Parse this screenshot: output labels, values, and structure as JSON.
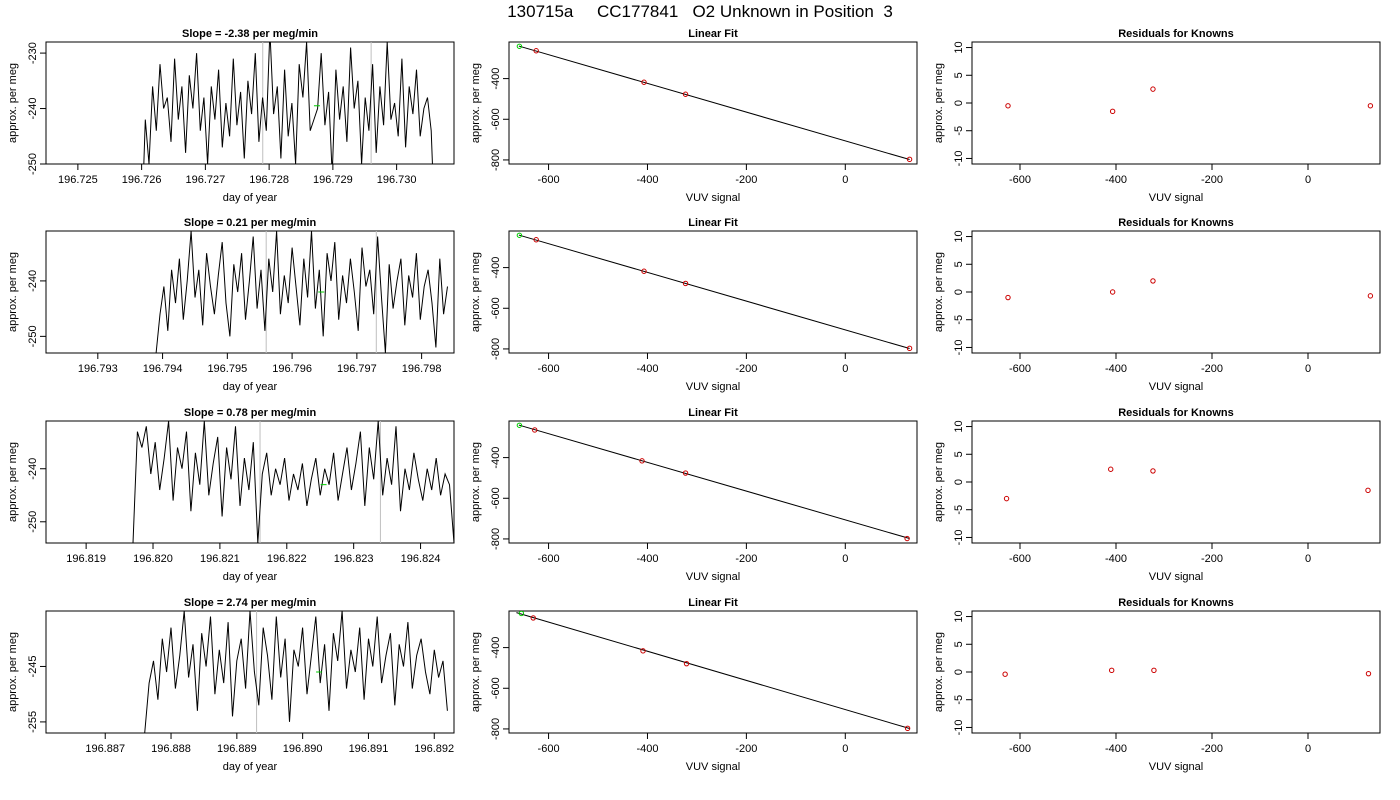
{
  "title": "130715a     CC177841   O2 Unknown in Position  3",
  "colors": {
    "axis": "#000000",
    "line": "#000000",
    "known": "#cc0000",
    "unknown": "#00cc00",
    "gridline": "#bfbfbf"
  },
  "chart_data": [
    {
      "type": "line",
      "title": "Slope =  -2.38  per meg/min",
      "xlabel": "day of year",
      "ylabel": "approx. per meg",
      "xlim": [
        196.7245,
        196.7309
      ],
      "ylim": [
        -250,
        -228
      ],
      "xticks": [
        "196.725",
        "196.726",
        "196.727",
        "196.728",
        "196.729",
        "196.730"
      ],
      "xtick_values": [
        196.725,
        196.726,
        196.727,
        196.728,
        196.729,
        196.73
      ],
      "yticks": [
        "-250",
        "-240",
        "-230"
      ],
      "ytick_values": [
        -250,
        -240,
        -230
      ],
      "vlines": [
        196.7279,
        196.7296
      ],
      "x_start": 196.726,
      "x_end": 196.7306,
      "values": [
        -262,
        -242,
        -250,
        -236,
        -244,
        -232,
        -240,
        -238,
        -246,
        -231,
        -242,
        -236,
        -248,
        -234,
        -240,
        -230,
        -244,
        -238,
        -250,
        -236,
        -242,
        -233,
        -247,
        -239,
        -245,
        -231,
        -243,
        -237,
        -249,
        -235,
        -241,
        -230,
        -246,
        -238,
        -244,
        -226,
        -241,
        -236,
        -249,
        -233,
        -245,
        -239,
        -250,
        -232,
        -238,
        -228,
        -244,
        -242,
        -240,
        -230,
        -243,
        -237,
        -252,
        -233,
        -242,
        -236,
        -246,
        -229,
        -240,
        -235,
        -250,
        -238,
        -244,
        -232,
        -248,
        -236,
        -243,
        -228,
        -242,
        -239,
        -245,
        -231,
        -247,
        -236,
        -241,
        -233,
        -245,
        -240,
        -238,
        -244,
        -262
      ],
      "unknown_point": [
        196.72875,
        -239.5
      ]
    },
    {
      "type": "line",
      "title": "Slope =  0.21  per meg/min",
      "xlabel": "day of year",
      "ylabel": "approx. per meg",
      "xlim": [
        196.7922,
        196.7985
      ],
      "ylim": [
        -253,
        -231
      ],
      "xticks": [
        "196.793",
        "196.794",
        "196.795",
        "196.796",
        "196.797",
        "196.798"
      ],
      "xtick_values": [
        196.793,
        196.794,
        196.795,
        196.796,
        196.797,
        196.798
      ],
      "yticks": [
        "-250",
        "-240"
      ],
      "ytick_values": [
        -250,
        -240
      ],
      "vlines": [
        196.7956,
        196.7973
      ],
      "x_start": 196.7939,
      "x_end": 196.7984,
      "values": [
        -253,
        -246,
        -241,
        -249,
        -238,
        -244,
        -236,
        -247,
        -240,
        -231,
        -243,
        -238,
        -248,
        -235,
        -241,
        -246,
        -239,
        -233,
        -244,
        -250,
        -237,
        -242,
        -235,
        -247,
        -240,
        -232,
        -245,
        -238,
        -249,
        -236,
        -242,
        -231,
        -246,
        -239,
        -244,
        -234,
        -241,
        -248,
        -236,
        -243,
        -231,
        -245,
        -238,
        -250,
        -235,
        -240,
        -233,
        -247,
        -239,
        -244,
        -236,
        -242,
        -249,
        -234,
        -241,
        -238,
        -246,
        -232,
        -243,
        -253,
        -237,
        -245,
        -240,
        -236,
        -248,
        -239,
        -243,
        -235,
        -247,
        -241,
        -238,
        -244,
        -252,
        -236,
        -246,
        -241
      ],
      "unknown_point": [
        196.79645,
        -242.0
      ]
    },
    {
      "type": "line",
      "title": "Slope =  0.78  per meg/min",
      "xlabel": "day of year",
      "ylabel": "approx. per meg",
      "xlim": [
        196.8184,
        196.8245
      ],
      "ylim": [
        -254,
        -231
      ],
      "xticks": [
        "196.819",
        "196.820",
        "196.821",
        "196.822",
        "196.823",
        "196.824"
      ],
      "xtick_values": [
        196.819,
        196.82,
        196.821,
        196.822,
        196.823,
        196.824
      ],
      "yticks": [
        "-250",
        "-240"
      ],
      "ytick_values": [
        -250,
        -240
      ],
      "vlines": [
        196.8216,
        196.8234
      ],
      "x_start": 196.8197,
      "x_end": 196.8245,
      "values": [
        -254,
        -233,
        -236,
        -232,
        -241,
        -235,
        -244,
        -238,
        -231,
        -246,
        -236,
        -240,
        -233,
        -248,
        -237,
        -243,
        -231,
        -245,
        -239,
        -234,
        -249,
        -236,
        -242,
        -232,
        -247,
        -238,
        -244,
        -235,
        -254,
        -241,
        -237,
        -245,
        -240,
        -243,
        -238,
        -246,
        -241,
        -244,
        -239,
        -247,
        -242,
        -238,
        -245,
        -240,
        -243,
        -237,
        -246,
        -241,
        -236,
        -244,
        -239,
        -233,
        -247,
        -236,
        -242,
        -231,
        -245,
        -238,
        -243,
        -232,
        -248,
        -240,
        -244,
        -237,
        -242,
        -246,
        -240,
        -244,
        -238,
        -245,
        -241,
        -243,
        -254
      ],
      "unknown_point": [
        196.82255,
        -243.0
      ]
    },
    {
      "type": "line",
      "title": "Slope =  2.74  per meg/min",
      "xlabel": "day of year",
      "ylabel": "approx. per meg",
      "xlim": [
        196.8861,
        196.8923
      ],
      "ylim": [
        -257,
        -235
      ],
      "xticks": [
        "196.887",
        "196.888",
        "196.889",
        "196.890",
        "196.891",
        "196.892"
      ],
      "xtick_values": [
        196.887,
        196.888,
        196.889,
        196.89,
        196.891,
        196.892
      ],
      "yticks": [
        "-255",
        "-245"
      ],
      "ytick_values": [
        -255,
        -245
      ],
      "vlines": [
        196.8893
      ],
      "x_start": 196.8876,
      "x_end": 196.8922,
      "values": [
        -257,
        -248,
        -244,
        -251,
        -240,
        -246,
        -238,
        -249,
        -243,
        -235,
        -247,
        -241,
        -253,
        -239,
        -245,
        -236,
        -250,
        -242,
        -248,
        -237,
        -254,
        -244,
        -240,
        -249,
        -235,
        -246,
        -252,
        -238,
        -243,
        -251,
        -236,
        -247,
        -240,
        -255,
        -242,
        -245,
        -238,
        -250,
        -243,
        -236,
        -248,
        -241,
        -253,
        -239,
        -244,
        -235,
        -249,
        -242,
        -246,
        -238,
        -251,
        -240,
        -245,
        -236,
        -248,
        -243,
        -239,
        -252,
        -241,
        -245,
        -237,
        -249,
        -243,
        -240,
        -246,
        -250,
        -242,
        -247,
        -244,
        -253
      ],
      "unknown_point": [
        196.89025,
        -246.0
      ]
    },
    {
      "type": "scatter",
      "title": "Linear Fit",
      "xlabel": "VUV signal",
      "ylabel": "approx. per meg",
      "xlim": [
        -680,
        145
      ],
      "ylim": [
        -820,
        -220
      ],
      "xticks": [
        "-600",
        "-400",
        "-200",
        "0"
      ],
      "xtick_values": [
        -600,
        -400,
        -200,
        0
      ],
      "yticks": [
        "-800",
        "-600",
        "-400"
      ],
      "ytick_values": [
        -800,
        -600,
        -400
      ],
      "fit_line": [
        [
          -660,
          -240
        ],
        [
          130,
          -798
        ]
      ],
      "knowns": [
        [
          -625,
          -263
        ],
        [
          -407,
          -418
        ],
        [
          -323,
          -477
        ],
        [
          130,
          -797
        ]
      ],
      "unknown": [
        -659,
        -241
      ]
    },
    {
      "type": "scatter",
      "title": "Linear Fit",
      "xlabel": "VUV signal",
      "ylabel": "approx. per meg",
      "xlim": [
        -680,
        145
      ],
      "ylim": [
        -820,
        -220
      ],
      "xticks": [
        "-600",
        "-400",
        "-200",
        "0"
      ],
      "xtick_values": [
        -600,
        -400,
        -200,
        0
      ],
      "yticks": [
        "-800",
        "-600",
        "-400"
      ],
      "ytick_values": [
        -800,
        -600,
        -400
      ],
      "fit_line": [
        [
          -660,
          -240
        ],
        [
          130,
          -798
        ]
      ],
      "knowns": [
        [
          -625,
          -263
        ],
        [
          -407,
          -418
        ],
        [
          -323,
          -478
        ],
        [
          130,
          -797
        ]
      ],
      "unknown": [
        -659,
        -241
      ]
    },
    {
      "type": "scatter",
      "title": "Linear Fit",
      "xlabel": "VUV signal",
      "ylabel": "approx. per meg",
      "xlim": [
        -680,
        145
      ],
      "ylim": [
        -820,
        -220
      ],
      "xticks": [
        "-600",
        "-400",
        "-200",
        "0"
      ],
      "xtick_values": [
        -600,
        -400,
        -200,
        0
      ],
      "yticks": [
        "-800",
        "-600",
        "-400"
      ],
      "ytick_values": [
        -800,
        -600,
        -400
      ],
      "fit_line": [
        [
          -660,
          -240
        ],
        [
          130,
          -798
        ]
      ],
      "knowns": [
        [
          -628,
          -264
        ],
        [
          -411,
          -416
        ],
        [
          -323,
          -476
        ],
        [
          125,
          -798
        ]
      ],
      "unknown": [
        -659,
        -241
      ]
    },
    {
      "type": "scatter",
      "title": "Linear Fit",
      "xlabel": "VUV signal",
      "ylabel": "approx. per meg",
      "xlim": [
        -680,
        145
      ],
      "ylim": [
        -820,
        -220
      ],
      "xticks": [
        "-600",
        "-400",
        "-200",
        "0"
      ],
      "xtick_values": [
        -600,
        -400,
        -200,
        0
      ],
      "yticks": [
        "-800",
        "-600",
        "-400"
      ],
      "ytick_values": [
        -800,
        -600,
        -400
      ],
      "fit_line": [
        [
          -665,
          -228
        ],
        [
          130,
          -798
        ]
      ],
      "knowns": [
        [
          -631,
          -254
        ],
        [
          -409,
          -416
        ],
        [
          -321,
          -479
        ],
        [
          126,
          -797
        ]
      ],
      "unknown": [
        -655,
        -232
      ]
    },
    {
      "type": "scatter",
      "title": "Residuals for Knowns",
      "xlabel": "VUV signal",
      "ylabel": "approx. per meg",
      "xlim": [
        -700,
        150
      ],
      "ylim": [
        -11,
        11
      ],
      "xticks": [
        "-600",
        "-400",
        "-200",
        "0"
      ],
      "xtick_values": [
        -600,
        -400,
        -200,
        0
      ],
      "yticks": [
        "-10",
        "-5",
        "0",
        "5",
        "10"
      ],
      "ytick_values": [
        -10,
        -5,
        0,
        5,
        10
      ],
      "knowns": [
        [
          -625,
          -0.5
        ],
        [
          -407,
          -1.5
        ],
        [
          -323,
          2.5
        ],
        [
          130,
          -0.5
        ]
      ]
    },
    {
      "type": "scatter",
      "title": "Residuals for Knowns",
      "xlabel": "VUV signal",
      "ylabel": "approx. per meg",
      "xlim": [
        -700,
        150
      ],
      "ylim": [
        -11,
        11
      ],
      "xticks": [
        "-600",
        "-400",
        "-200",
        "0"
      ],
      "xtick_values": [
        -600,
        -400,
        -200,
        0
      ],
      "yticks": [
        "-10",
        "-5",
        "0",
        "5",
        "10"
      ],
      "ytick_values": [
        -10,
        -5,
        0,
        5,
        10
      ],
      "knowns": [
        [
          -625,
          -1.0
        ],
        [
          -407,
          0.0
        ],
        [
          -323,
          2.0
        ],
        [
          130,
          -0.7
        ]
      ]
    },
    {
      "type": "scatter",
      "title": "Residuals for Knowns",
      "xlabel": "VUV signal",
      "ylabel": "approx. per meg",
      "xlim": [
        -700,
        150
      ],
      "ylim": [
        -11,
        11
      ],
      "xticks": [
        "-600",
        "-400",
        "-200",
        "0"
      ],
      "xtick_values": [
        -600,
        -400,
        -200,
        0
      ],
      "yticks": [
        "-10",
        "-5",
        "0",
        "5",
        "10"
      ],
      "ytick_values": [
        -10,
        -5,
        0,
        5,
        10
      ],
      "knowns": [
        [
          -628,
          -3.0
        ],
        [
          -411,
          2.3
        ],
        [
          -323,
          2.0
        ],
        [
          125,
          -1.5
        ]
      ]
    },
    {
      "type": "scatter",
      "title": "Residuals for Knowns",
      "xlabel": "VUV signal",
      "ylabel": "approx. per meg",
      "xlim": [
        -700,
        150
      ],
      "ylim": [
        -11,
        11
      ],
      "xticks": [
        "-600",
        "-400",
        "-200",
        "0"
      ],
      "xtick_values": [
        -600,
        -400,
        -200,
        0
      ],
      "yticks": [
        "-10",
        "-5",
        "0",
        "5",
        "10"
      ],
      "ytick_values": [
        -10,
        -5,
        0,
        5,
        10
      ],
      "knowns": [
        [
          -631,
          -0.4
        ],
        [
          -409,
          0.3
        ],
        [
          -321,
          0.3
        ],
        [
          126,
          -0.3
        ]
      ]
    }
  ]
}
